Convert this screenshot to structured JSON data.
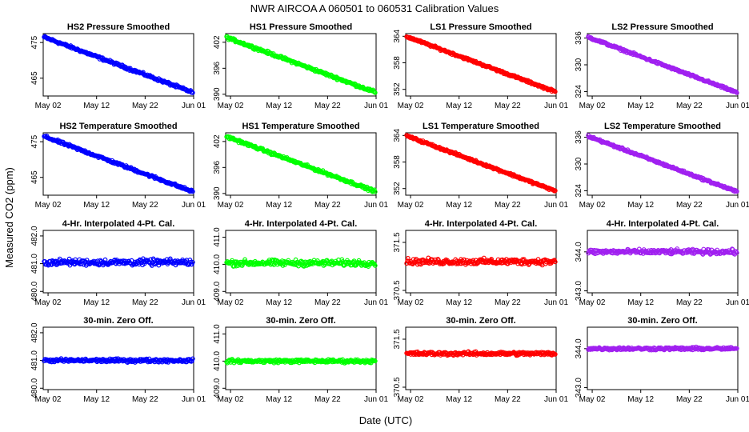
{
  "figure": {
    "title": "NWR   AIRCOA A   060501 to 060531   Calibration Values",
    "xlabel": "Date (UTC)",
    "ylabel": "Measured CO2 (ppm)"
  },
  "colors": {
    "HS2": "#0000ff",
    "HS1": "#00ff00",
    "LS1": "#ff0000",
    "LS2": "#a020f0"
  },
  "x_ticks": [
    "May 02",
    "May 12",
    "May 22",
    "Jun 01"
  ],
  "x_tick_days": [
    1,
    11,
    21,
    31
  ],
  "x_range_days": [
    0,
    31
  ],
  "chart_data": [
    {
      "type": "scatter",
      "title": "HS2 Pressure Smoothed",
      "series": "HS2",
      "shape": "trend",
      "y_start": 476.6,
      "y_end": 460.9,
      "noise": 0.3,
      "ylim": [
        460.0,
        477.5
      ],
      "y_ticks": [
        "465",
        "475"
      ],
      "y_tick_values": [
        465,
        475
      ]
    },
    {
      "type": "scatter",
      "title": "HS1 Pressure Smoothed",
      "series": "HS1",
      "shape": "trend",
      "y_start": 403.2,
      "y_end": 390.4,
      "noise": 0.25,
      "ylim": [
        389.6,
        404.0
      ],
      "y_ticks": [
        "390",
        "396",
        "402"
      ],
      "y_tick_values": [
        390,
        396,
        402
      ]
    },
    {
      "type": "scatter",
      "title": "LS1 Pressure Smoothed",
      "series": "LS1",
      "shape": "trend",
      "y_start": 364.0,
      "y_end": 351.4,
      "noise": 0.2,
      "ylim": [
        350.5,
        364.6
      ],
      "y_ticks": [
        "352",
        "358",
        "364"
      ],
      "y_tick_values": [
        352,
        358,
        364
      ]
    },
    {
      "type": "scatter",
      "title": "LS2 Pressure Smoothed",
      "series": "LS2",
      "shape": "trend",
      "y_start": 336.3,
      "y_end": 323.7,
      "noise": 0.2,
      "ylim": [
        323.0,
        337.0
      ],
      "y_ticks": [
        "324",
        "330",
        "336"
      ],
      "y_tick_values": [
        324,
        330,
        336
      ]
    },
    {
      "type": "scatter",
      "title": "HS2 Temperature Smoothed",
      "series": "HS2",
      "shape": "trend",
      "y_start": 476.6,
      "y_end": 460.9,
      "noise": 0.3,
      "ylim": [
        460.0,
        477.5
      ],
      "y_ticks": [
        "465",
        "475"
      ],
      "y_tick_values": [
        465,
        475
      ]
    },
    {
      "type": "scatter",
      "title": "HS1 Temperature Smoothed",
      "series": "HS1",
      "shape": "trend",
      "y_start": 403.2,
      "y_end": 390.4,
      "noise": 0.25,
      "ylim": [
        389.6,
        404.0
      ],
      "y_ticks": [
        "390",
        "396",
        "402"
      ],
      "y_tick_values": [
        390,
        396,
        402
      ]
    },
    {
      "type": "scatter",
      "title": "LS1 Temperature Smoothed",
      "series": "LS1",
      "shape": "trend",
      "y_start": 364.0,
      "y_end": 351.4,
      "noise": 0.2,
      "ylim": [
        350.5,
        364.6
      ],
      "y_ticks": [
        "352",
        "358",
        "364"
      ],
      "y_tick_values": [
        352,
        358,
        364
      ]
    },
    {
      "type": "scatter",
      "title": "LS2 Temperature Smoothed",
      "series": "LS2",
      "shape": "trend",
      "y_start": 336.3,
      "y_end": 323.7,
      "noise": 0.2,
      "ylim": [
        323.0,
        337.0
      ],
      "y_ticks": [
        "324",
        "330",
        "336"
      ],
      "y_tick_values": [
        324,
        330,
        336
      ]
    },
    {
      "type": "scatter",
      "title": "4-Hr. Interpolated 4-Pt. Cal.",
      "series": "HS2",
      "shape": "flat",
      "y_center": 481.05,
      "noise": 0.09,
      "ylim": [
        479.95,
        482.2
      ],
      "y_ticks": [
        "480.0",
        "481.0",
        "482.0"
      ],
      "y_tick_values": [
        480.0,
        481.0,
        482.0
      ]
    },
    {
      "type": "scatter",
      "title": "4-Hr. Interpolated 4-Pt. Cal.",
      "series": "HS1",
      "shape": "flat",
      "y_center": 410.05,
      "noise": 0.09,
      "ylim": [
        408.95,
        411.25
      ],
      "y_ticks": [
        "409.0",
        "410.0",
        "411.0"
      ],
      "y_tick_values": [
        409.0,
        410.0,
        411.0
      ]
    },
    {
      "type": "scatter",
      "title": "4-Hr. Interpolated 4-Pt. Cal.",
      "series": "LS1",
      "shape": "flat",
      "y_center": 371.1,
      "noise": 0.05,
      "ylim": [
        370.45,
        371.75
      ],
      "y_ticks": [
        "370.5",
        "371.5"
      ],
      "y_tick_values": [
        370.5,
        371.5
      ]
    },
    {
      "type": "scatter",
      "title": "4-Hr. Interpolated 4-Pt. Cal.",
      "series": "LS2",
      "shape": "flat",
      "y_center": 344.0,
      "noise": 0.05,
      "ylim": [
        342.95,
        344.55
      ],
      "y_ticks": [
        "343.0",
        "344.0"
      ],
      "y_tick_values": [
        343.0,
        344.0
      ]
    },
    {
      "type": "scatter",
      "title": "30-min. Zero Off.",
      "series": "HS2",
      "shape": "flat",
      "y_center": 481.0,
      "noise": 0.05,
      "ylim": [
        479.95,
        482.2
      ],
      "y_ticks": [
        "480.0",
        "481.0",
        "482.0"
      ],
      "y_tick_values": [
        480.0,
        481.0,
        482.0
      ]
    },
    {
      "type": "scatter",
      "title": "30-min. Zero Off.",
      "series": "HS1",
      "shape": "flat",
      "y_center": 410.0,
      "noise": 0.05,
      "ylim": [
        408.95,
        411.25
      ],
      "y_ticks": [
        "409.0",
        "410.0",
        "411.0"
      ],
      "y_tick_values": [
        409.0,
        410.0,
        411.0
      ]
    },
    {
      "type": "scatter",
      "title": "30-min. Zero Off.",
      "series": "LS1",
      "shape": "flat",
      "y_center": 371.2,
      "noise": 0.03,
      "ylim": [
        370.45,
        371.75
      ],
      "y_ticks": [
        "370.5",
        "371.5"
      ],
      "y_tick_values": [
        370.5,
        371.5
      ]
    },
    {
      "type": "scatter",
      "title": "30-min. Zero Off.",
      "series": "LS2",
      "shape": "flat",
      "y_center": 344.0,
      "noise": 0.03,
      "ylim": [
        342.95,
        344.55
      ],
      "y_ticks": [
        "343.0",
        "344.0"
      ],
      "y_tick_values": [
        343.0,
        344.0
      ]
    }
  ]
}
